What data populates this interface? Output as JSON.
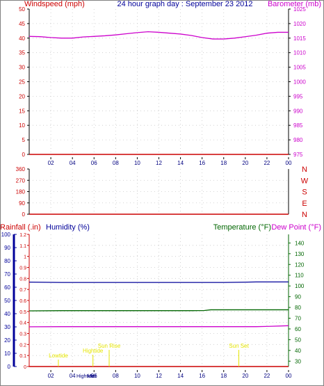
{
  "header": {
    "left_label": "Windspeed (mph)",
    "center_label": "24 hour graph day : September 23 2012",
    "right_label": "Barometer (mb)"
  },
  "colors": {
    "windspeed": "#cc0000",
    "barometer": "#cc00cc",
    "direction": "#cc0000",
    "rainfall": "#cc0000",
    "humidity": "#000099",
    "temperature": "#006600",
    "dewpoint": "#cc00cc",
    "sun": "#e6e600",
    "grid": "#c8c8c8",
    "axis": "#000000"
  },
  "chart_data": [
    {
      "id": "wind-pressure",
      "type": "line",
      "title": "24 hour graph day : September 23 2012",
      "ylabel_left": "Windspeed (mph)",
      "ylabel_right": "Barometer (mb)",
      "x_ticks": [
        "02",
        "04",
        "06",
        "08",
        "10",
        "12",
        "14",
        "16",
        "18",
        "20",
        "22",
        "00"
      ],
      "y_left_ticks": [
        "0",
        "5",
        "10",
        "15",
        "20",
        "25",
        "30",
        "35",
        "40",
        "45",
        "50"
      ],
      "y_left_range": [
        0,
        50
      ],
      "y_right_ticks": [
        "975",
        "980",
        "985",
        "990",
        "995",
        "1000",
        "1005",
        "1010",
        "1015",
        "1020",
        "1025"
      ],
      "y_right_range": [
        975,
        1025
      ],
      "grid": true,
      "series": [
        {
          "axis": "left",
          "x": [
            0,
            1,
            2,
            3,
            4,
            5,
            6,
            7,
            8,
            9,
            10,
            11,
            12,
            13,
            14,
            15,
            16,
            17,
            18,
            19,
            20,
            21,
            22,
            23,
            24
          ],
          "y": [
            0,
            0,
            0,
            0,
            0,
            0,
            0,
            0,
            0,
            0,
            0,
            0,
            0,
            0,
            0,
            0,
            0,
            0,
            0,
            0,
            0,
            0,
            0,
            0,
            0
          ]
        },
        {
          "axis": "right",
          "x": [
            0,
            1,
            2,
            3,
            4,
            5,
            6,
            7,
            8,
            9,
            10,
            11,
            12,
            13,
            14,
            15,
            16,
            17,
            18,
            19,
            20,
            21,
            22,
            23,
            24
          ],
          "y": [
            1015.6,
            1015.5,
            1015.2,
            1015.0,
            1015.0,
            1015.4,
            1015.6,
            1015.8,
            1016.1,
            1016.5,
            1016.9,
            1017.2,
            1017.0,
            1016.7,
            1016.4,
            1015.9,
            1015.2,
            1014.7,
            1014.7,
            1015.0,
            1015.5,
            1016.0,
            1016.7,
            1017.0,
            1017.0
          ]
        }
      ]
    },
    {
      "id": "wind-direction",
      "type": "scatter",
      "x_ticks": [
        "02",
        "04",
        "06",
        "08",
        "10",
        "12",
        "14",
        "16",
        "18",
        "20",
        "22",
        "00"
      ],
      "y_left_ticks": [
        "0",
        "90",
        "180",
        "270",
        "360"
      ],
      "y_left_range": [
        0,
        360
      ],
      "y_right_ticks": [
        "N",
        "E",
        "S",
        "W",
        "N"
      ],
      "grid": true,
      "series": [
        {
          "x": [
            0,
            24
          ],
          "y": [
            0,
            0
          ]
        }
      ]
    },
    {
      "id": "rain-humidity-temp",
      "type": "line",
      "ylabel_rain": "Rainfall (.in)",
      "ylabel_humidity": "Humidity (%)",
      "ylabel_temperature": "Temperature (°F)",
      "ylabel_dewpoint": "Dew Point (°F)",
      "x_ticks": [
        "02",
        "04",
        "06",
        "08",
        "10",
        "12",
        "14",
        "16",
        "18",
        "20",
        "22",
        "00"
      ],
      "humidity_ticks": [
        "0",
        "10",
        "20",
        "30",
        "40",
        "50",
        "60",
        "70",
        "80",
        "90",
        "100"
      ],
      "humidity_range": [
        0,
        100
      ],
      "rain_ticks": [
        "0",
        "0.1",
        "0.2",
        "0.3",
        "0.4",
        "0.5",
        "0.6",
        "0.7",
        "0.8",
        "0.9",
        "1",
        "1.1",
        "1.2"
      ],
      "rain_range": [
        0,
        1.2
      ],
      "temp_ticks": [
        "30",
        "40",
        "50",
        "60",
        "70",
        "80",
        "90",
        "100",
        "110",
        "120",
        "130",
        "140"
      ],
      "temp_range": [
        25,
        148
      ],
      "grid": true,
      "series": [
        {
          "axis": "humidity",
          "x": [
            0,
            3,
            6,
            9,
            12,
            15,
            18,
            19.8,
            21,
            24
          ],
          "y": [
            63.9,
            63.6,
            63.6,
            63.6,
            63.6,
            63.6,
            63.6,
            63.8,
            64.0,
            64.0
          ]
        },
        {
          "axis": "temperature",
          "x": [
            0,
            3,
            6,
            9,
            12,
            15,
            16.2,
            16.8,
            18,
            21,
            24
          ],
          "y": [
            76.8,
            77.0,
            77.0,
            77.0,
            77.0,
            77.0,
            77.1,
            77.8,
            77.8,
            77.8,
            77.8
          ]
        },
        {
          "axis": "temperature",
          "x": [
            0,
            3,
            6,
            9,
            12,
            15,
            18,
            21,
            22.2,
            24
          ],
          "y": [
            62.0,
            62.1,
            62.1,
            62.1,
            62.1,
            62.1,
            62.1,
            62.1,
            62.4,
            63.0
          ]
        },
        {
          "axis": "rain",
          "x": [
            0,
            24
          ],
          "y": [
            0,
            0
          ]
        }
      ],
      "annotations": [
        {
          "label": "Lowtide",
          "x": 2.7
        },
        {
          "label": "Hightide",
          "x": 5.9
        },
        {
          "label": "Sun Rise",
          "x": 7.4
        },
        {
          "label": "Sun Set",
          "x": 19.4
        },
        {
          "label": "Hightide",
          "x": 5.2
        },
        {
          "label": "Midt",
          "x": 5.8
        }
      ]
    }
  ]
}
